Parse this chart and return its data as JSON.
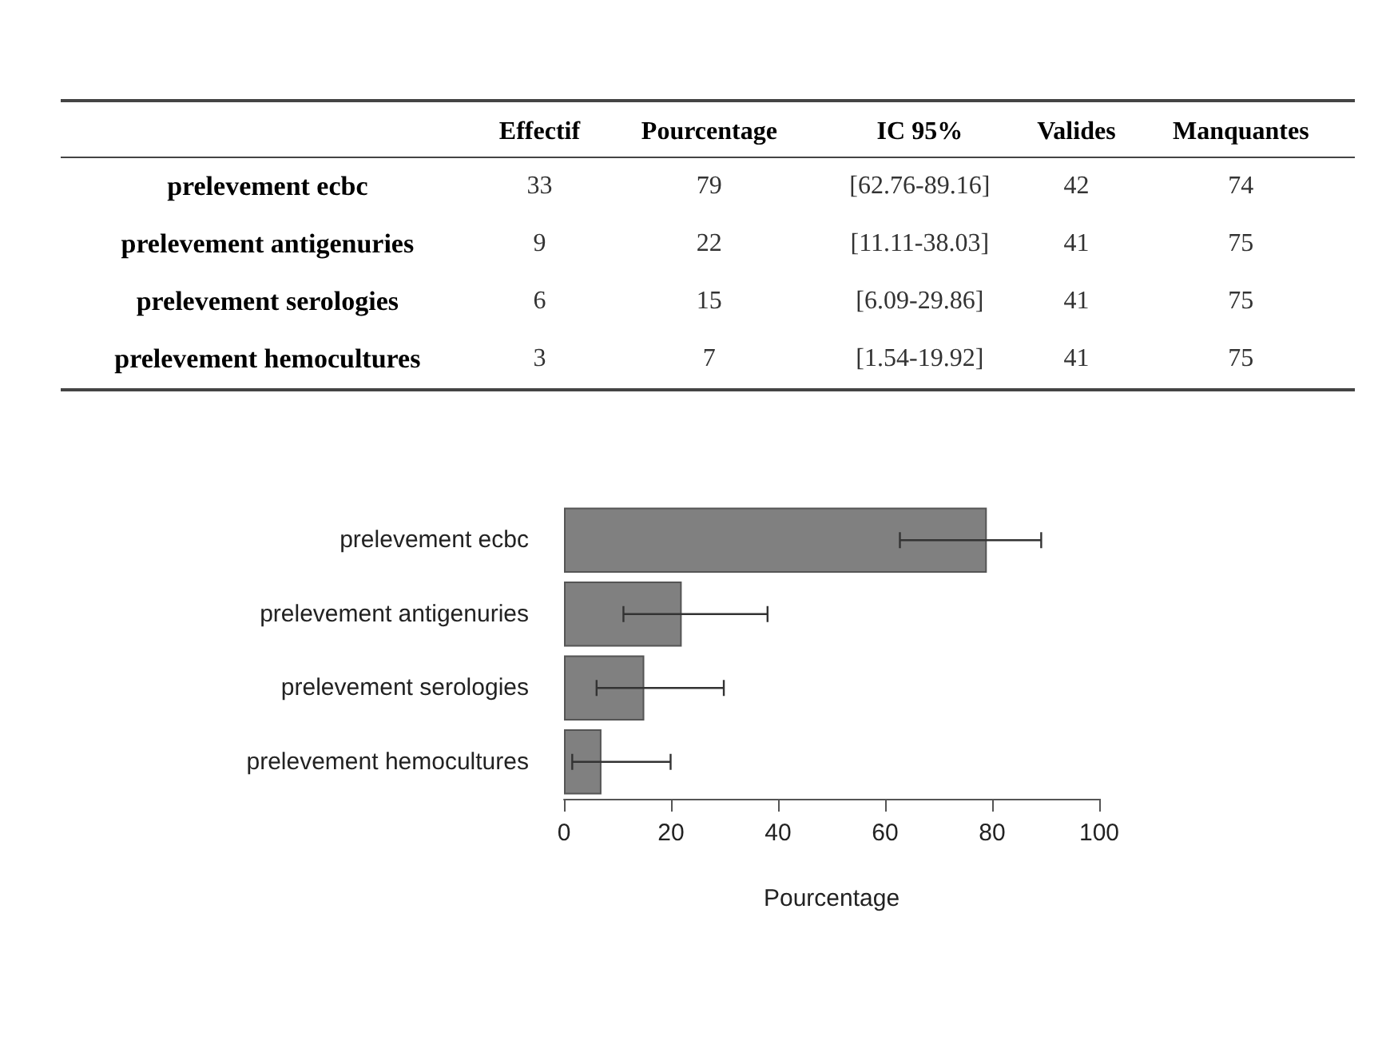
{
  "chart_data": [
    {
      "type": "other",
      "data_labels": true,
      "categories": [
        "prelevement ecbc",
        "prelevement antigenuries",
        "prelevement serologies",
        "prelevement hemocultures"
      ],
      "series": [
        {
          "name": "Effectif",
          "values": [
            33,
            9,
            6,
            3
          ]
        },
        {
          "name": "Pourcentage",
          "values": [
            79,
            22,
            15,
            7
          ]
        },
        {
          "name": "IC 95%",
          "values": [
            null,
            null,
            null,
            null
          ],
          "value_labels": [
            "[62.76-89.16]",
            "[11.11-38.03]",
            "[6.09-29.86]",
            "[1.54-19.92]"
          ]
        },
        {
          "name": "Valides",
          "values": [
            42,
            41,
            41,
            41
          ]
        },
        {
          "name": "Manquantes",
          "values": [
            74,
            75,
            75,
            75
          ]
        }
      ]
    },
    {
      "type": "bar",
      "orientation": "horizontal",
      "categories": [
        "prelevement ecbc",
        "prelevement antigenuries",
        "prelevement serologies",
        "prelevement hemocultures"
      ],
      "values": [
        79,
        22,
        15,
        7
      ],
      "errors": [
        [
          62.76,
          89.16
        ],
        [
          11.11,
          38.03
        ],
        [
          6.09,
          29.86
        ],
        [
          1.54,
          19.92
        ]
      ],
      "color": "#808080",
      "xlabel": "Pourcentage",
      "xlim": [
        0,
        100
      ],
      "xticks": [
        0,
        20,
        40,
        60,
        80,
        100
      ],
      "grid": false
    }
  ]
}
